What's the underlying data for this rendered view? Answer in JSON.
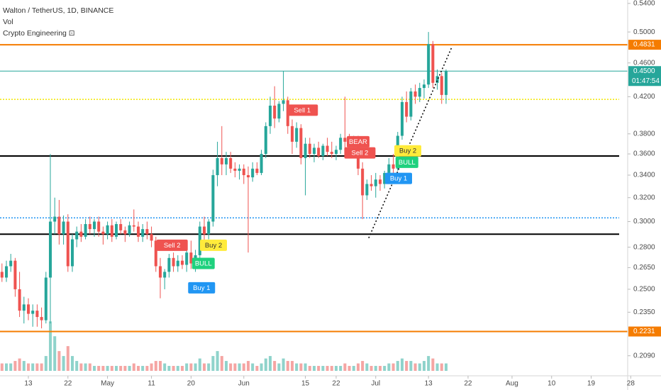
{
  "chart_data": {
    "type": "candlestick",
    "title": "Walton / TetherUS, 1D, BINANCE",
    "indicators": [
      "Vol",
      "Crypto Engineering ⊡"
    ],
    "log_scale": true,
    "grid": false,
    "up_color": "#26a69a",
    "down_color": "#ef5350",
    "volume_up_color": "#8fd3cb",
    "volume_down_color": "#f5a5a3",
    "x": [
      6,
      7,
      8,
      9,
      10,
      11,
      12,
      13,
      14,
      15,
      16,
      17,
      18,
      19,
      20,
      21,
      22,
      23,
      24,
      25,
      26,
      27,
      28,
      29,
      30,
      31,
      32,
      33,
      34,
      35,
      36,
      37,
      38,
      39,
      40,
      41,
      42,
      43,
      44,
      45,
      46,
      47,
      48,
      49,
      50,
      51,
      52,
      53,
      54,
      55,
      56,
      57,
      58,
      59,
      60,
      61,
      62,
      63,
      64,
      65,
      66,
      67,
      68,
      69,
      70,
      71,
      72,
      73,
      74,
      75,
      76,
      77,
      78,
      79,
      80,
      81,
      82,
      83,
      84,
      85,
      86,
      87,
      88,
      89,
      90,
      91,
      92,
      93,
      94,
      95,
      96,
      97,
      98,
      99,
      100,
      101,
      102,
      103,
      104,
      105,
      106,
      107
    ],
    "candles": [
      [
        0.262,
        0.268,
        0.255,
        0.258
      ],
      [
        0.258,
        0.27,
        0.255,
        0.266
      ],
      [
        0.266,
        0.275,
        0.262,
        0.27
      ],
      [
        0.27,
        0.272,
        0.245,
        0.25
      ],
      [
        0.25,
        0.262,
        0.232,
        0.236
      ],
      [
        0.236,
        0.245,
        0.228,
        0.24
      ],
      [
        0.24,
        0.244,
        0.23,
        0.234
      ],
      [
        0.234,
        0.24,
        0.226,
        0.236
      ],
      [
        0.236,
        0.24,
        0.226,
        0.232
      ],
      [
        0.232,
        0.238,
        0.225,
        0.23
      ],
      [
        0.23,
        0.262,
        0.228,
        0.258
      ],
      [
        0.258,
        0.36,
        0.228,
        0.3
      ],
      [
        0.3,
        0.32,
        0.29,
        0.304
      ],
      [
        0.304,
        0.318,
        0.282,
        0.29
      ],
      [
        0.29,
        0.305,
        0.282,
        0.3
      ],
      [
        0.3,
        0.306,
        0.262,
        0.266
      ],
      [
        0.266,
        0.29,
        0.262,
        0.286
      ],
      [
        0.286,
        0.296,
        0.28,
        0.292
      ],
      [
        0.292,
        0.298,
        0.284,
        0.288
      ],
      [
        0.288,
        0.302,
        0.286,
        0.298
      ],
      [
        0.298,
        0.304,
        0.29,
        0.294
      ],
      [
        0.294,
        0.302,
        0.288,
        0.3
      ],
      [
        0.3,
        0.304,
        0.288,
        0.292
      ],
      [
        0.292,
        0.296,
        0.282,
        0.29
      ],
      [
        0.29,
        0.3,
        0.286,
        0.297
      ],
      [
        0.297,
        0.302,
        0.284,
        0.288
      ],
      [
        0.288,
        0.3,
        0.286,
        0.298
      ],
      [
        0.298,
        0.302,
        0.29,
        0.293
      ],
      [
        0.293,
        0.296,
        0.284,
        0.29
      ],
      [
        0.29,
        0.3,
        0.288,
        0.297
      ],
      [
        0.297,
        0.31,
        0.292,
        0.296
      ],
      [
        0.296,
        0.3,
        0.284,
        0.288
      ],
      [
        0.288,
        0.298,
        0.284,
        0.294
      ],
      [
        0.294,
        0.3,
        0.286,
        0.29
      ],
      [
        0.29,
        0.296,
        0.28,
        0.285
      ],
      [
        0.285,
        0.288,
        0.262,
        0.266
      ],
      [
        0.266,
        0.272,
        0.244,
        0.258
      ],
      [
        0.258,
        0.264,
        0.25,
        0.262
      ],
      [
        0.262,
        0.275,
        0.258,
        0.272
      ],
      [
        0.272,
        0.276,
        0.262,
        0.266
      ],
      [
        0.266,
        0.274,
        0.262,
        0.27
      ],
      [
        0.27,
        0.274,
        0.264,
        0.267
      ],
      [
        0.267,
        0.28,
        0.262,
        0.276
      ],
      [
        0.276,
        0.285,
        0.264,
        0.268
      ],
      [
        0.268,
        0.278,
        0.262,
        0.274
      ],
      [
        0.274,
        0.3,
        0.27,
        0.296
      ],
      [
        0.296,
        0.304,
        0.284,
        0.29
      ],
      [
        0.29,
        0.302,
        0.286,
        0.3
      ],
      [
        0.3,
        0.345,
        0.296,
        0.34
      ],
      [
        0.34,
        0.372,
        0.33,
        0.356
      ],
      [
        0.356,
        0.388,
        0.34,
        0.35
      ],
      [
        0.35,
        0.362,
        0.34,
        0.356
      ],
      [
        0.356,
        0.362,
        0.342,
        0.346
      ],
      [
        0.346,
        0.352,
        0.338,
        0.344
      ],
      [
        0.344,
        0.35,
        0.336,
        0.346
      ],
      [
        0.346,
        0.35,
        0.332,
        0.34
      ],
      [
        0.34,
        0.348,
        0.276,
        0.338
      ],
      [
        0.338,
        0.352,
        0.334,
        0.346
      ],
      [
        0.346,
        0.352,
        0.34,
        0.342
      ],
      [
        0.342,
        0.364,
        0.34,
        0.36
      ],
      [
        0.36,
        0.392,
        0.356,
        0.388
      ],
      [
        0.388,
        0.42,
        0.38,
        0.41
      ],
      [
        0.41,
        0.432,
        0.386,
        0.396
      ],
      [
        0.396,
        0.415,
        0.392,
        0.412
      ],
      [
        0.412,
        0.45,
        0.404,
        0.416
      ],
      [
        0.416,
        0.42,
        0.38,
        0.388
      ],
      [
        0.388,
        0.395,
        0.36,
        0.372
      ],
      [
        0.372,
        0.392,
        0.366,
        0.386
      ],
      [
        0.386,
        0.39,
        0.35,
        0.356
      ],
      [
        0.356,
        0.376,
        0.322,
        0.37
      ],
      [
        0.37,
        0.376,
        0.356,
        0.36
      ],
      [
        0.36,
        0.37,
        0.352,
        0.366
      ],
      [
        0.366,
        0.372,
        0.356,
        0.358
      ],
      [
        0.358,
        0.37,
        0.354,
        0.368
      ],
      [
        0.368,
        0.376,
        0.358,
        0.362
      ],
      [
        0.362,
        0.372,
        0.356,
        0.36
      ],
      [
        0.36,
        0.368,
        0.354,
        0.364
      ],
      [
        0.364,
        0.38,
        0.36,
        0.376
      ],
      [
        0.376,
        0.42,
        0.362,
        0.372
      ],
      [
        0.372,
        0.38,
        0.362,
        0.368
      ],
      [
        0.368,
        0.378,
        0.36,
        0.374
      ],
      [
        0.374,
        0.378,
        0.34,
        0.346
      ],
      [
        0.346,
        0.352,
        0.302,
        0.322
      ],
      [
        0.322,
        0.336,
        0.318,
        0.332
      ],
      [
        0.332,
        0.34,
        0.326,
        0.33
      ],
      [
        0.33,
        0.342,
        0.32,
        0.336
      ],
      [
        0.336,
        0.34,
        0.326,
        0.332
      ],
      [
        0.332,
        0.344,
        0.328,
        0.342
      ],
      [
        0.342,
        0.356,
        0.336,
        0.35
      ],
      [
        0.35,
        0.36,
        0.342,
        0.346
      ],
      [
        0.346,
        0.382,
        0.344,
        0.378
      ],
      [
        0.378,
        0.42,
        0.374,
        0.414
      ],
      [
        0.414,
        0.426,
        0.392,
        0.398
      ],
      [
        0.398,
        0.43,
        0.394,
        0.426
      ],
      [
        0.426,
        0.434,
        0.412,
        0.42
      ],
      [
        0.42,
        0.436,
        0.414,
        0.43
      ],
      [
        0.43,
        0.44,
        0.418,
        0.434
      ],
      [
        0.434,
        0.5,
        0.43,
        0.484
      ],
      [
        0.484,
        0.488,
        0.43,
        0.436
      ],
      [
        0.436,
        0.452,
        0.428,
        0.444
      ],
      [
        0.444,
        0.448,
        0.412,
        0.422
      ],
      [
        0.422,
        0.452,
        0.412,
        0.45
      ]
    ],
    "volume": [
      3,
      3,
      3,
      4,
      5,
      4,
      3,
      3,
      3,
      3,
      6,
      20,
      14,
      8,
      6,
      10,
      6,
      4,
      3,
      3,
      3,
      2,
      2,
      2,
      2,
      2,
      2,
      2,
      2,
      2,
      3,
      2,
      2,
      2,
      3,
      4,
      4,
      3,
      2,
      2,
      2,
      2,
      3,
      3,
      3,
      5,
      3,
      3,
      6,
      8,
      6,
      4,
      3,
      3,
      3,
      3,
      4,
      3,
      2,
      3,
      5,
      6,
      4,
      3,
      5,
      4,
      4,
      3,
      3,
      3,
      2,
      2,
      2,
      2,
      2,
      2,
      2,
      2,
      3,
      2,
      2,
      3,
      4,
      3,
      2,
      2,
      2,
      2,
      3,
      3,
      4,
      5,
      4,
      4,
      3,
      3,
      4,
      6,
      5,
      3,
      3,
      3
    ],
    "vlim": [
      0,
      150
    ],
    "xlim": [
      5.55,
      148.3
    ],
    "xticks": [
      {
        "value": 12,
        "label": "13"
      },
      {
        "value": 21,
        "label": "22"
      },
      {
        "value": 30,
        "label": "May"
      },
      {
        "value": 40,
        "label": "11"
      },
      {
        "value": 49,
        "label": "20"
      },
      {
        "value": 61,
        "label": "Jun"
      },
      {
        "value": 75,
        "label": "15"
      },
      {
        "value": 82,
        "label": "22"
      },
      {
        "value": 91,
        "label": "Jul"
      },
      {
        "value": 103,
        "label": "13"
      },
      {
        "value": 112,
        "label": "22"
      },
      {
        "value": 122,
        "label": "Aug"
      },
      {
        "value": 131,
        "label": "10"
      },
      {
        "value": 140,
        "label": "19"
      },
      {
        "value": 149,
        "label": "28"
      }
    ],
    "ylim": [
      0.198,
      0.545
    ],
    "yticks": [
      {
        "value": 0.54,
        "label": "0.5400"
      },
      {
        "value": 0.5,
        "label": "0.5000"
      },
      {
        "value": 0.46,
        "label": "0.4600"
      },
      {
        "value": 0.42,
        "label": "0.4200"
      },
      {
        "value": 0.38,
        "label": "0.3800"
      },
      {
        "value": 0.36,
        "label": "0.3600"
      },
      {
        "value": 0.34,
        "label": "0.3400"
      },
      {
        "value": 0.32,
        "label": "0.3200"
      },
      {
        "value": 0.3,
        "label": "0.3000"
      },
      {
        "value": 0.28,
        "label": "0.2800"
      },
      {
        "value": 0.265,
        "label": "0.2650"
      },
      {
        "value": 0.25,
        "label": "0.2500"
      },
      {
        "value": 0.235,
        "label": "0.2350"
      },
      {
        "value": 0.209,
        "label": "0.2090"
      }
    ],
    "hlines": [
      {
        "value": 0.4831,
        "label": "0.4831",
        "color": "#f57c00",
        "style": "solid"
      },
      {
        "value": 0.2231,
        "label": "0.2231",
        "color": "#f57c00",
        "style": "solid"
      },
      {
        "value": 0.417,
        "color": "#f2e600",
        "style": "dotted"
      },
      {
        "value": 0.358,
        "color": "#000000",
        "style": "solid"
      },
      {
        "value": 0.29,
        "color": "#000000",
        "style": "solid"
      },
      {
        "value": 0.303,
        "color": "#2196f3",
        "style": "dotted"
      }
    ],
    "last_price": {
      "value": 0.45,
      "label": "0.4500",
      "countdown": "01:47:54",
      "color": "#26a69a"
    },
    "trendline": {
      "x": [
        89.4,
        108.3
      ],
      "values": [
        0.287,
        0.48
      ],
      "color": "#000000"
    },
    "signals": [
      {
        "text": "Sell 2",
        "x": 44.7,
        "value": 0.2815,
        "color": "#ef5350"
      },
      {
        "text": "Buy 2",
        "x": 54.1,
        "value": 0.2815,
        "color": "#ffeb3b"
      },
      {
        "text": "BULL",
        "x": 51.8,
        "value": 0.268,
        "color": "#1fd17e"
      },
      {
        "text": "Buy 1",
        "x": 51.4,
        "value": 0.251,
        "color": "#2196f3"
      },
      {
        "text": "Sell 1",
        "x": 74.3,
        "value": 0.405,
        "color": "#ef5350"
      },
      {
        "text": "BEAR",
        "x": 87,
        "value": 0.372,
        "color": "#ef5350"
      },
      {
        "text": "Sell 2",
        "x": 87.4,
        "value": 0.361,
        "color": "#ef5350"
      },
      {
        "text": "Buy 2",
        "x": 98.3,
        "value": 0.363,
        "color": "#ffeb3b"
      },
      {
        "text": "BULL",
        "x": 98.1,
        "value": 0.352,
        "color": "#1fd17e"
      },
      {
        "text": "Buy 1",
        "x": 96.2,
        "value": 0.337,
        "color": "#2196f3"
      }
    ]
  }
}
